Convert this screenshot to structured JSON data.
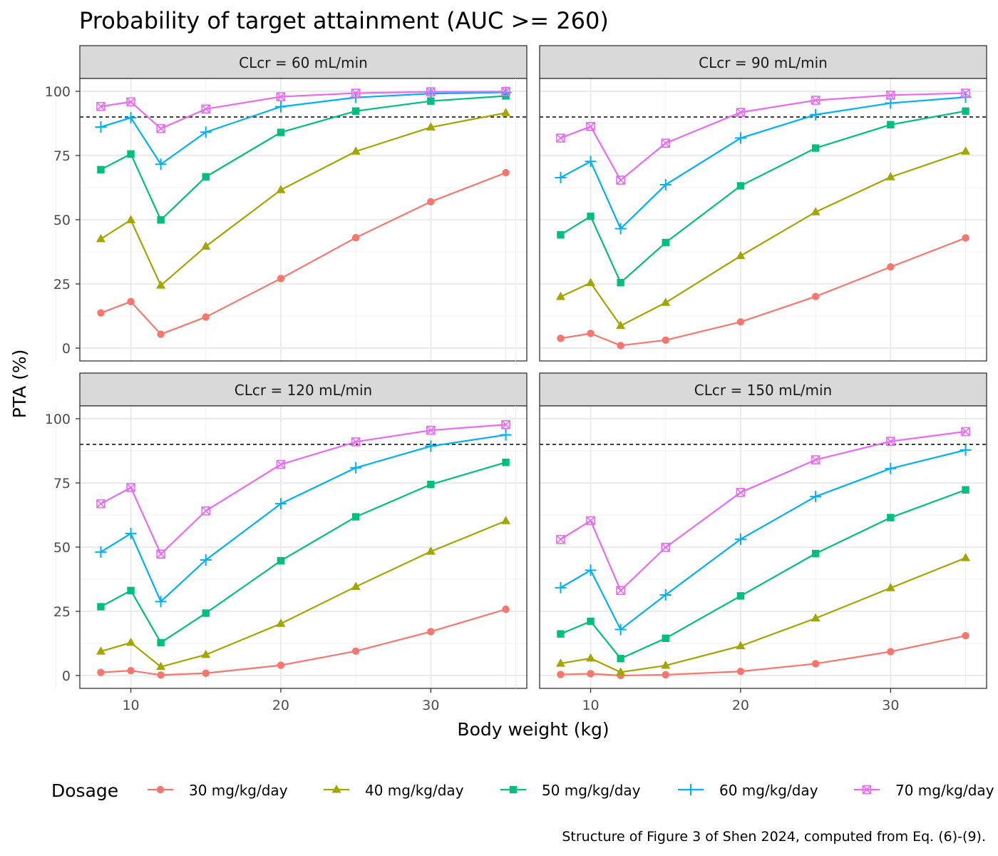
{
  "chart_data": {
    "type": "line",
    "title": "Probability of target attainment (AUC >= 260)",
    "xlabel": "Body weight (kg)",
    "ylabel": "PTA (%)",
    "caption": "Structure of Figure 3 of Shen 2024, computed from Eq. (6)-(9).",
    "x": [
      8,
      10,
      12,
      15,
      20,
      25,
      30,
      35
    ],
    "xlim": [
      6.6,
      36.4
    ],
    "ylim": [
      -5,
      105
    ],
    "xticks": [
      "10",
      "20",
      "30"
    ],
    "xtick_values": [
      10,
      20,
      30
    ],
    "yticks": [
      "0",
      "25",
      "50",
      "75",
      "100"
    ],
    "ytick_values": [
      0,
      25,
      50,
      75,
      100
    ],
    "grid": true,
    "reference_line": {
      "y": 90,
      "style": "dashed"
    },
    "legend": {
      "title": "Dosage",
      "position": "bottom",
      "entries": [
        "30 mg/kg/day",
        "40 mg/kg/day",
        "50 mg/kg/day",
        "60 mg/kg/day",
        "70 mg/kg/day"
      ],
      "colors": [
        "#F8766D",
        "#A3A500",
        "#00BF7D",
        "#00B0F6",
        "#E76BF3"
      ],
      "shapes": [
        "circle",
        "triangle",
        "square",
        "plus",
        "square-cross"
      ]
    },
    "panels": [
      {
        "label": "CLcr = 60 mL/min",
        "series": [
          {
            "name": "30 mg/kg/day",
            "values": [
              13.7,
              18.1,
              5.4,
              12.1,
              27.1,
              43.0,
              57.0,
              68.3
            ]
          },
          {
            "name": "40 mg/kg/day",
            "values": [
              42.5,
              49.9,
              24.4,
              39.6,
              61.6,
              76.6,
              86.0,
              91.6
            ]
          },
          {
            "name": "50 mg/kg/day",
            "values": [
              69.5,
              75.6,
              49.9,
              66.7,
              84.0,
              92.3,
              96.2,
              98.2
            ]
          },
          {
            "name": "60 mg/kg/day",
            "values": [
              86.1,
              89.7,
              71.6,
              84.1,
              94.0,
              97.6,
              99.1,
              99.6
            ]
          },
          {
            "name": "70 mg/kg/day",
            "values": [
              94.1,
              95.9,
              85.5,
              93.1,
              97.9,
              99.3,
              99.8,
              99.9
            ]
          }
        ]
      },
      {
        "label": "CLcr = 90 mL/min",
        "series": [
          {
            "name": "30 mg/kg/day",
            "values": [
              3.8,
              5.7,
              1.0,
              3.1,
              10.2,
              20.1,
              31.6,
              42.9
            ]
          },
          {
            "name": "40 mg/kg/day",
            "values": [
              20.0,
              25.4,
              8.7,
              17.7,
              35.9,
              53.0,
              66.6,
              76.6
            ]
          },
          {
            "name": "50 mg/kg/day",
            "values": [
              44.1,
              51.3,
              25.5,
              41.1,
              63.2,
              77.9,
              87.0,
              92.3
            ]
          },
          {
            "name": "60 mg/kg/day",
            "values": [
              66.4,
              72.7,
              46.5,
              63.6,
              81.8,
              90.9,
              95.4,
              97.7
            ]
          },
          {
            "name": "70 mg/kg/day",
            "values": [
              81.8,
              86.3,
              65.4,
              79.8,
              91.8,
              96.5,
              98.5,
              99.3
            ]
          }
        ]
      },
      {
        "label": "CLcr = 120 mL/min",
        "series": [
          {
            "name": "30 mg/kg/day",
            "values": [
              1.2,
              1.9,
              0.2,
              0.9,
              4.0,
              9.5,
              17.1,
              25.8
            ]
          },
          {
            "name": "40 mg/kg/day",
            "values": [
              9.4,
              12.8,
              3.4,
              8.1,
              20.2,
              34.6,
              48.3,
              60.2
            ]
          },
          {
            "name": "50 mg/kg/day",
            "values": [
              26.8,
              33.1,
              12.8,
              24.3,
              44.7,
              61.8,
              74.4,
              83.0
            ]
          },
          {
            "name": "60 mg/kg/day",
            "values": [
              48.1,
              55.3,
              28.8,
              45.0,
              66.9,
              80.9,
              89.3,
              93.7
            ]
          },
          {
            "name": "70 mg/kg/day",
            "values": [
              66.9,
              73.2,
              47.3,
              64.1,
              82.2,
              91.0,
              95.5,
              97.7
            ]
          }
        ]
      },
      {
        "label": "CLcr = 150 mL/min",
        "series": [
          {
            "name": "30 mg/kg/day",
            "values": [
              0.4,
              0.7,
              0.0,
              0.3,
              1.6,
              4.6,
              9.3,
              15.5
            ]
          },
          {
            "name": "40 mg/kg/day",
            "values": [
              4.7,
              6.7,
              1.3,
              3.9,
              11.5,
              22.3,
              34.1,
              45.8
            ]
          },
          {
            "name": "50 mg/kg/day",
            "values": [
              16.2,
              21.1,
              6.6,
              14.5,
              31.0,
              47.5,
              61.5,
              72.3
            ]
          },
          {
            "name": "60 mg/kg/day",
            "values": [
              34.2,
              41.0,
              17.9,
              31.4,
              53.1,
              69.7,
              80.6,
              87.8
            ]
          },
          {
            "name": "70 mg/kg/day",
            "values": [
              53.0,
              60.3,
              33.1,
              49.9,
              71.3,
              84.0,
              91.2,
              95.0
            ]
          }
        ]
      }
    ]
  }
}
